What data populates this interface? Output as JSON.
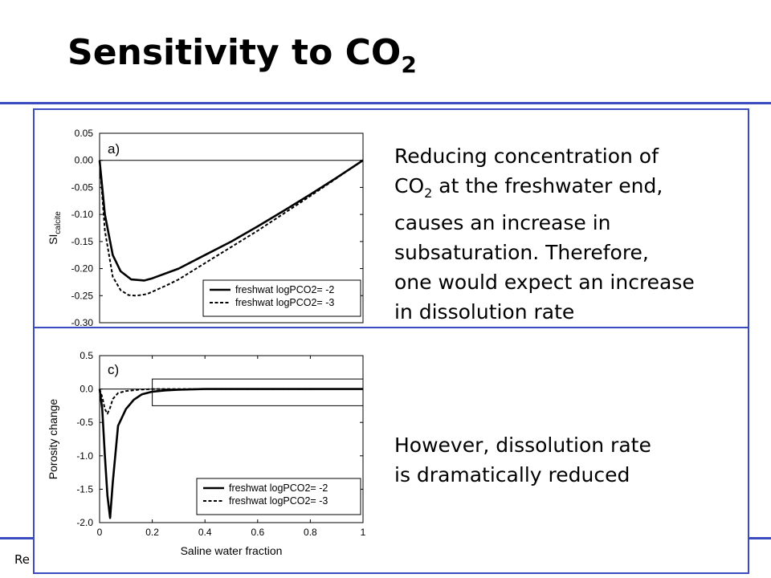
{
  "slide": {
    "title_main": "Sensitivity to CO",
    "title_sub": "2",
    "footer_visible_text": "Re"
  },
  "panel_a_text": {
    "line1": "Reducing concentration of",
    "line2_pre": "CO",
    "line2_sub": "2",
    "line2_post": " at the freshwater end,",
    "line3": "causes an increase in",
    "line4": "subsaturation. Therefore,",
    "line5": "one would expect an increase",
    "line6": "in dissolution rate"
  },
  "panel_c_text": {
    "line1": "However, dissolution rate",
    "line2": "is dramatically reduced"
  },
  "colors": {
    "accent_blue": "#3b4cc0",
    "line": "#000000"
  },
  "chart_data": [
    {
      "type": "line",
      "panel_label": "a)",
      "ylabel_main": "SI",
      "ylabel_sub": "calcite",
      "xlim": [
        0,
        1
      ],
      "ylim": [
        -0.3,
        0.05
      ],
      "yticks": [
        0.05,
        0.0,
        -0.05,
        -0.1,
        -0.15,
        -0.2,
        -0.25,
        -0.3
      ],
      "ytick_labels": [
        "0.05",
        "0.00",
        "-0.05",
        "-0.10",
        "-0.15",
        "-0.20",
        "-0.25",
        "-0.30"
      ],
      "grid": false,
      "legend_position": "bottom-right",
      "series": [
        {
          "name": "freshwat logPCO2= -2",
          "style": "solid",
          "x": [
            0,
            0.02,
            0.05,
            0.08,
            0.12,
            0.17,
            0.2,
            0.3,
            0.4,
            0.5,
            0.6,
            0.7,
            0.8,
            0.9,
            1.0
          ],
          "y": [
            0.0,
            -0.1,
            -0.175,
            -0.205,
            -0.22,
            -0.222,
            -0.218,
            -0.2,
            -0.175,
            -0.15,
            -0.122,
            -0.093,
            -0.063,
            -0.032,
            0.0
          ]
        },
        {
          "name": "freshwat logPCO2= -3",
          "style": "dashed",
          "x": [
            0,
            0.02,
            0.05,
            0.08,
            0.11,
            0.14,
            0.18,
            0.25,
            0.3,
            0.4,
            0.5,
            0.6,
            0.7,
            0.8,
            0.9,
            1.0
          ],
          "y": [
            0.0,
            -0.13,
            -0.215,
            -0.24,
            -0.249,
            -0.25,
            -0.247,
            -0.232,
            -0.22,
            -0.19,
            -0.16,
            -0.13,
            -0.098,
            -0.066,
            -0.033,
            0.0
          ]
        }
      ]
    },
    {
      "type": "line",
      "panel_label": "c)",
      "ylabel": "Porosity change",
      "xlabel": "Saline water fraction",
      "xlim": [
        0,
        1
      ],
      "ylim": [
        -2.0,
        0.5
      ],
      "xticks": [
        0,
        0.2,
        0.4,
        0.6,
        0.8,
        1
      ],
      "xtick_labels": [
        "0",
        "0.2",
        "0.4",
        "0.6",
        "0.8",
        "1"
      ],
      "yticks": [
        0.5,
        0.0,
        -0.5,
        -1.0,
        -1.5,
        -2.0
      ],
      "ytick_labels": [
        "0.5",
        "0.0",
        "-0.5",
        "-1.0",
        "-1.5",
        "-2.0"
      ],
      "grid": false,
      "legend_position": "bottom-right",
      "inset_box": {
        "x": [
          0.2,
          1.0
        ],
        "y": [
          -0.25,
          0.15
        ]
      },
      "series": [
        {
          "name": "freshwat logPCO2= -2",
          "style": "solid",
          "x": [
            0,
            0.01,
            0.02,
            0.03,
            0.04,
            0.05,
            0.07,
            0.1,
            0.13,
            0.16,
            0.2,
            0.25,
            0.3,
            0.4,
            1.0
          ],
          "y": [
            0.0,
            -0.3,
            -1.0,
            -1.6,
            -1.93,
            -1.4,
            -0.55,
            -0.3,
            -0.16,
            -0.08,
            -0.04,
            -0.02,
            -0.01,
            0.0,
            0.0
          ]
        },
        {
          "name": "freshwat logPCO2= -3",
          "style": "dashed",
          "x": [
            0,
            0.01,
            0.02,
            0.03,
            0.04,
            0.05,
            0.07,
            0.1,
            0.15,
            0.2,
            0.3,
            0.8
          ],
          "y": [
            0.0,
            -0.12,
            -0.3,
            -0.37,
            -0.28,
            -0.15,
            -0.06,
            -0.03,
            -0.01,
            0.0,
            0.0,
            0.0
          ]
        }
      ]
    }
  ]
}
